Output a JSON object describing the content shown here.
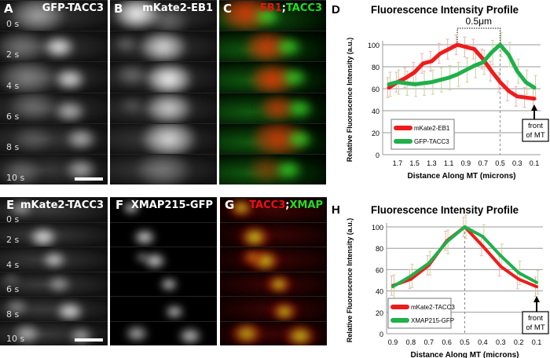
{
  "panels_top": [
    {
      "letter": "A",
      "title": "GFP-TACC3",
      "type": "gray"
    },
    {
      "letter": "B",
      "title": "mKate2-EB1",
      "type": "gray"
    },
    {
      "letter": "C",
      "title_red": "EB1",
      "title_sep": ";",
      "title_green": "TACC3",
      "type": "merge"
    }
  ],
  "panels_bottom": [
    {
      "letter": "E",
      "title": "mKate2-TACC3",
      "type": "gray"
    },
    {
      "letter": "F",
      "title": "XMAP215-GFP",
      "type": "gray"
    },
    {
      "letter": "G",
      "title_red": "TACC3",
      "title_sep": ";",
      "title_green": "XMAP",
      "type": "merge"
    }
  ],
  "time_labels": [
    "0 s",
    "2 s",
    "4 s",
    "6 s",
    "8 s",
    "10 s"
  ],
  "colors": {
    "red": "#ee1c1c",
    "green": "#1fb04a",
    "errbar": "#c8d49a",
    "errbar_red": "#f0b0b0"
  },
  "chart_data": [
    {
      "letter": "D",
      "type": "line",
      "title": "Fluorescence Intensity Profile",
      "xlabel": "Distance Along MT (microns)",
      "ylabel": "Relative Fluorescence Intensity (a.u.)",
      "x": [
        1.8,
        1.7,
        1.6,
        1.5,
        1.4,
        1.3,
        1.2,
        1.1,
        1.0,
        0.9,
        0.8,
        0.7,
        0.6,
        0.5,
        0.4,
        0.3,
        0.2,
        0.1
      ],
      "x_ticks": [
        "1.7",
        "1.5",
        "1.3",
        "1.1",
        "0.9",
        "0.7",
        "0.5",
        "0.3",
        "0.1"
      ],
      "y_ticks": [
        "0",
        "20",
        "40",
        "60",
        "80",
        "100"
      ],
      "ylim": [
        0,
        100
      ],
      "x_reversed": true,
      "grid": true,
      "legend": "bottom-left",
      "series": [
        {
          "name": "mKate2-EB1",
          "color": "#ee1c1c",
          "values": [
            61,
            66,
            70,
            75,
            83,
            85,
            92,
            96,
            100,
            98,
            96,
            87,
            76,
            66,
            58,
            53,
            52,
            51
          ]
        },
        {
          "name": "GFP-TACC3",
          "color": "#1fb04a",
          "values": [
            64,
            66,
            65,
            64,
            65,
            66,
            68,
            70,
            73,
            77,
            81,
            84,
            93,
            100,
            91,
            76,
            66,
            61
          ]
        }
      ],
      "bracket_label": "0.5μm",
      "bracket_from": 1.0,
      "bracket_to": 0.5,
      "dashed_at": 0.5,
      "annotation": [
        "front",
        "of MT"
      ]
    },
    {
      "letter": "H",
      "type": "line",
      "title": "Fluorescence Intensity Profile",
      "xlabel": "Distance Along MT (microns)",
      "ylabel": "Relative Fluorescence Intensity (a.u.)",
      "x": [
        0.9,
        0.8,
        0.7,
        0.6,
        0.5,
        0.4,
        0.3,
        0.2,
        0.1
      ],
      "x_ticks": [
        "0.9",
        "0.8",
        "0.7",
        "0.6",
        "0.5",
        "0.4",
        "0.3",
        "0.2",
        "0.1"
      ],
      "y_ticks": [
        "0",
        "20",
        "40",
        "60",
        "80",
        "100"
      ],
      "ylim": [
        0,
        100
      ],
      "x_reversed": true,
      "grid": true,
      "legend": "bottom-left",
      "series": [
        {
          "name": "mKate2-TACC3",
          "color": "#ee1c1c",
          "values": [
            45,
            51,
            64,
            87,
            100,
            82,
            63,
            51,
            44
          ]
        },
        {
          "name": "XMAP215-GFP",
          "color": "#1fb04a",
          "values": [
            44,
            54,
            66,
            86,
            100,
            91,
            73,
            57,
            48
          ]
        }
      ],
      "dashed_at": 0.5,
      "annotation": [
        "front",
        "of MT"
      ]
    }
  ]
}
